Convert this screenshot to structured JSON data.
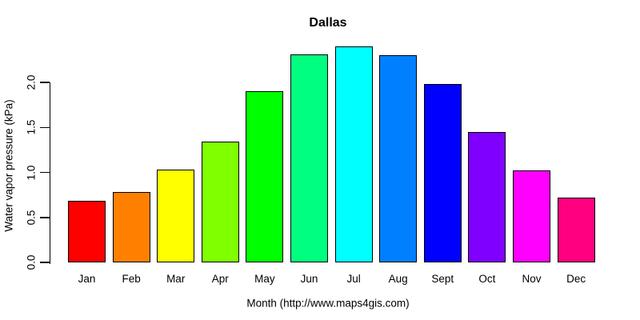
{
  "chart_data": {
    "type": "bar",
    "title": "Dallas",
    "xlabel": "Month (http://www.maps4gis.com)",
    "ylabel": "Water vapor pressure (kPa)",
    "categories": [
      "Jan",
      "Feb",
      "Mar",
      "Apr",
      "May",
      "Jun",
      "Jul",
      "Aug",
      "Sept",
      "Oct",
      "Nov",
      "Dec"
    ],
    "values": [
      0.68,
      0.78,
      1.03,
      1.34,
      1.9,
      2.31,
      2.4,
      2.3,
      1.98,
      1.45,
      1.02,
      0.72
    ],
    "bar_colors": [
      "#FF0000",
      "#FF8000",
      "#FFFF00",
      "#80FF00",
      "#00FF00",
      "#00FF80",
      "#00FFFF",
      "#0080FF",
      "#0000FF",
      "#8000FF",
      "#FF00FF",
      "#FF0080"
    ],
    "bar_border_color": "#000000",
    "yticks": [
      0.0,
      0.5,
      1.0,
      1.5,
      2.0
    ],
    "ytick_labels": [
      "0.0",
      "0.5",
      "1.0",
      "1.5",
      "2.0"
    ],
    "ylim": [
      0,
      2.45
    ],
    "grid": false,
    "legend": "none",
    "background": "#FFFFFF",
    "axis_color": "#000000"
  }
}
